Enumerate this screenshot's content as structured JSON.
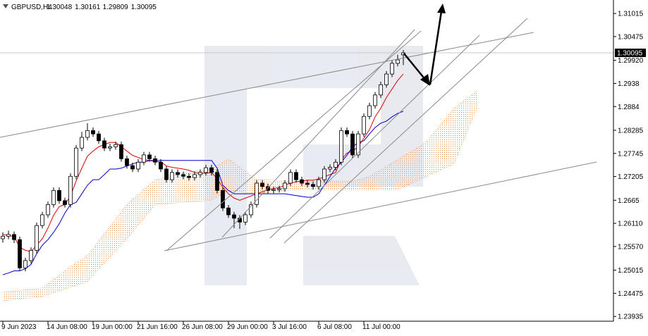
{
  "chart_data": {
    "type": "candlestick",
    "title": "GBPUSD,H4",
    "header_values": [
      1.30048,
      1.30161,
      1.29809,
      1.30095
    ],
    "categories": [
      "9 Jun 2023",
      null,
      null,
      null,
      null,
      null,
      null,
      null,
      "14 Jun 08:00",
      null,
      null,
      null,
      null,
      null,
      null,
      null,
      "19 Jun 00:00",
      null,
      null,
      null,
      null,
      null,
      null,
      null,
      "21 Jun 16:00",
      null,
      null,
      null,
      null,
      null,
      null,
      null,
      "26 Jun 08:00",
      null,
      null,
      null,
      null,
      null,
      null,
      null,
      "29 Jun 00:00",
      null,
      null,
      null,
      null,
      null,
      null,
      null,
      "3 Jul 16:00",
      null,
      null,
      null,
      null,
      null,
      null,
      null,
      "6 Jul 08:00",
      null,
      null,
      null,
      null,
      null,
      null,
      null,
      "11 Jul 00:00",
      null,
      null,
      null,
      null,
      null,
      null,
      null,
      null,
      null,
      null,
      null,
      null,
      null,
      null,
      null,
      null,
      null,
      null,
      null,
      null
    ],
    "open": [
      1.2575,
      1.2581,
      1.2585,
      1.2573,
      1.2507,
      1.2524,
      1.2548,
      1.2606,
      1.2631,
      1.2655,
      1.2688,
      1.2664,
      1.2655,
      1.2721,
      1.2787,
      1.2812,
      1.2828,
      1.282,
      1.2804,
      1.2787,
      1.279,
      1.2795,
      1.2762,
      1.2746,
      1.2738,
      1.2754,
      1.2771,
      1.2762,
      1.2754,
      1.2738,
      1.2713,
      1.273,
      1.2725,
      1.2721,
      1.2718,
      1.2725,
      1.273,
      1.2741,
      1.273,
      1.2688,
      1.2647,
      1.2631,
      1.2623,
      1.2614,
      1.2631,
      1.2655,
      1.2705,
      1.2697,
      1.2688,
      1.269,
      1.2692,
      1.2705,
      1.273,
      1.2713,
      1.2705,
      1.2702,
      1.2697,
      1.2713,
      1.2738,
      1.2742,
      1.2754,
      1.2828,
      1.282,
      1.2771,
      1.282,
      1.2861,
      1.2886,
      1.2911,
      1.2935,
      1.296,
      1.2985,
      1.30048,
      null,
      null,
      null,
      null,
      null,
      null,
      null,
      null,
      null,
      null,
      null,
      null,
      null
    ],
    "high": [
      1.259,
      1.2594,
      1.2592,
      1.258,
      1.2531,
      1.2555,
      1.2613,
      1.2638,
      1.2662,
      1.2695,
      1.2695,
      1.2671,
      1.2728,
      1.2794,
      1.2825,
      1.2845,
      1.2835,
      1.2827,
      1.2811,
      1.2797,
      1.2802,
      1.2802,
      1.2769,
      1.2753,
      1.2761,
      1.2778,
      1.2778,
      1.2769,
      1.2761,
      1.2745,
      1.2737,
      1.2737,
      1.2732,
      1.2728,
      1.2732,
      1.2737,
      1.2748,
      1.2748,
      1.2737,
      1.2695,
      1.2654,
      1.2638,
      1.263,
      1.2638,
      1.2662,
      1.2712,
      1.2712,
      1.2704,
      1.2697,
      1.2699,
      1.2712,
      1.2737,
      1.2737,
      1.272,
      1.2712,
      1.2709,
      1.272,
      1.2745,
      1.2749,
      1.2761,
      1.2835,
      1.2835,
      1.2827,
      1.2827,
      1.2868,
      1.2893,
      1.2918,
      1.2942,
      1.2967,
      1.2992,
      1.3005,
      1.30161,
      null,
      null,
      null,
      null,
      null,
      null,
      null,
      null,
      null,
      null,
      null,
      null,
      null
    ],
    "low": [
      1.2566,
      1.2574,
      1.2565,
      1.25,
      1.2499,
      1.2517,
      1.2541,
      1.2599,
      1.2624,
      1.2648,
      1.2657,
      1.2648,
      1.2648,
      1.2714,
      1.278,
      1.2805,
      1.2813,
      1.2797,
      1.278,
      1.278,
      1.2783,
      1.2755,
      1.2739,
      1.2731,
      1.2731,
      1.2747,
      1.2755,
      1.2747,
      1.2731,
      1.2706,
      1.2706,
      1.2718,
      1.2714,
      1.2711,
      1.2711,
      1.2718,
      1.2723,
      1.2723,
      1.2681,
      1.264,
      1.2624,
      1.26,
      1.2598,
      1.2607,
      1.2624,
      1.2648,
      1.269,
      1.2681,
      1.2681,
      1.2683,
      1.2685,
      1.2698,
      1.2706,
      1.2698,
      1.2695,
      1.269,
      1.269,
      1.2706,
      1.2731,
      1.2735,
      1.2747,
      1.2813,
      1.2764,
      1.2764,
      1.2813,
      1.2854,
      1.2879,
      1.2904,
      1.2928,
      1.2953,
      1.2978,
      1.29809,
      null,
      null,
      null,
      null,
      null,
      null,
      null,
      null,
      null,
      null,
      null,
      null,
      null
    ],
    "close": [
      1.2581,
      1.2585,
      1.2573,
      1.2507,
      1.2524,
      1.2548,
      1.2606,
      1.2631,
      1.2655,
      1.2688,
      1.2664,
      1.2655,
      1.2721,
      1.2787,
      1.2812,
      1.2828,
      1.282,
      1.2804,
      1.2787,
      1.279,
      1.2795,
      1.2762,
      1.2746,
      1.2738,
      1.2754,
      1.2771,
      1.2762,
      1.2754,
      1.2738,
      1.2713,
      1.273,
      1.2725,
      1.2721,
      1.2718,
      1.2725,
      1.273,
      1.2741,
      1.273,
      1.2688,
      1.2647,
      1.2631,
      1.2623,
      1.2614,
      1.2631,
      1.2655,
      1.2705,
      1.2697,
      1.2688,
      1.269,
      1.2692,
      1.2705,
      1.273,
      1.2713,
      1.2705,
      1.2702,
      1.2697,
      1.2713,
      1.2738,
      1.2742,
      1.2754,
      1.2828,
      1.282,
      1.2771,
      1.282,
      1.2861,
      1.2886,
      1.2911,
      1.2935,
      1.296,
      1.2985,
      1.2993,
      1.30095,
      null,
      null,
      null,
      null,
      null,
      null,
      null,
      null,
      null,
      null,
      null,
      null,
      null
    ],
    "up_color": "#ffffff",
    "down_color": "#000000",
    "wick_color": "#000000",
    "series": [
      {
        "color": "#e00000",
        "values": [
          1.2585,
          1.2583,
          1.258,
          1.2555,
          1.2548,
          1.2545,
          1.256,
          1.2575,
          1.26,
          1.263,
          1.265,
          1.2655,
          1.2675,
          1.271,
          1.274,
          1.2768,
          1.278,
          1.279,
          1.2795,
          1.28,
          1.28,
          1.279,
          1.278,
          1.277,
          1.2765,
          1.276,
          1.2758,
          1.2755,
          1.2755,
          1.2745,
          1.2742,
          1.274,
          1.2738,
          1.2735,
          1.273,
          1.2728,
          1.2728,
          1.273,
          1.2715,
          1.2695,
          1.268,
          1.267,
          1.2665,
          1.267,
          1.2675,
          1.268,
          1.2685,
          1.269,
          1.2692,
          1.2695,
          1.27,
          1.2705,
          1.2708,
          1.271,
          1.2712,
          1.2712,
          1.2715,
          1.272,
          1.2725,
          1.273,
          1.276,
          1.2775,
          1.278,
          1.279,
          1.281,
          1.283,
          1.286,
          1.288,
          1.2905,
          1.2925,
          1.2945,
          1.296,
          null,
          null,
          null,
          null,
          null,
          null,
          null,
          null,
          null,
          null,
          null,
          null,
          null
        ]
      },
      {
        "color": "#0000c8",
        "values": [
          1.2491,
          1.2495,
          1.25,
          1.25,
          1.2505,
          1.2515,
          1.254,
          1.256,
          1.2573,
          1.259,
          1.261,
          1.2635,
          1.2655,
          1.266,
          1.268,
          1.27,
          1.2713,
          1.2713,
          1.2725,
          1.2738,
          1.2738,
          1.274,
          1.2745,
          1.275,
          1.2754,
          1.2754,
          1.2758,
          1.2758,
          1.2758,
          1.2758,
          1.2758,
          1.2758,
          1.2758,
          1.2758,
          1.2758,
          1.2758,
          1.2758,
          1.2758,
          1.274,
          1.27,
          1.2688,
          1.268,
          1.268,
          1.268,
          1.268,
          1.268,
          1.268,
          1.268,
          1.268,
          1.268,
          1.268,
          1.2678,
          1.2676,
          1.2674,
          1.2672,
          1.2672,
          1.268,
          1.27,
          1.272,
          1.274,
          1.2754,
          1.277,
          1.279,
          1.28,
          1.2804,
          1.282,
          1.2835,
          1.2845,
          1.285,
          1.286,
          1.2868,
          1.2873,
          null,
          null,
          null,
          null,
          null,
          null,
          null,
          null,
          null,
          null,
          null,
          null,
          null
        ]
      }
    ],
    "cloud": {
      "color": "#f08a3c",
      "upper": [
        1.245,
        1.2451,
        1.2453,
        1.2454,
        1.2456,
        1.2457,
        1.2459,
        1.246,
        1.247,
        1.248,
        1.249,
        1.25,
        1.251,
        1.2518,
        1.2527,
        1.2535,
        1.2552,
        1.257,
        1.2587,
        1.2604,
        1.2621,
        1.2638,
        1.2655,
        1.2667,
        1.2678,
        1.269,
        1.2701,
        1.2713,
        1.2716,
        1.272,
        1.2723,
        1.2727,
        1.273,
        1.2732,
        1.2733,
        1.2735,
        1.2736,
        1.2738,
        1.2746,
        1.2754,
        1.2762,
        1.2752,
        1.2742,
        1.2733,
        1.2723,
        1.2713,
        1.2713,
        1.2712,
        1.2712,
        1.2711,
        1.2711,
        1.271,
        1.271,
        1.271,
        1.271,
        1.271,
        1.271,
        1.271,
        1.271,
        1.271,
        1.271,
        1.271,
        1.271,
        1.2713,
        1.2717,
        1.272,
        1.2728,
        1.2736,
        1.2744,
        1.2752,
        1.276,
        1.2768,
        1.2776,
        1.2784,
        1.2792,
        1.28,
        1.2816,
        1.2832,
        1.2848,
        1.2864,
        1.288,
        1.289,
        1.29,
        1.291,
        1.292
      ],
      "lower": [
        1.243,
        1.2431,
        1.2433,
        1.2434,
        1.2436,
        1.2437,
        1.2439,
        1.244,
        1.2444,
        1.2449,
        1.2453,
        1.2458,
        1.2462,
        1.2466,
        1.2471,
        1.2475,
        1.249,
        1.2504,
        1.2518,
        1.2533,
        1.2547,
        1.2561,
        1.2575,
        1.2591,
        1.2607,
        1.2623,
        1.2639,
        1.2655,
        1.2656,
        1.2657,
        1.2658,
        1.2659,
        1.266,
        1.2661,
        1.2662,
        1.2663,
        1.2664,
        1.2665,
        1.2673,
        1.268,
        1.2688,
        1.2686,
        1.2685,
        1.2683,
        1.2682,
        1.268,
        1.2681,
        1.2683,
        1.2684,
        1.2686,
        1.2687,
        1.2689,
        1.269,
        1.269,
        1.269,
        1.269,
        1.269,
        1.269,
        1.269,
        1.269,
        1.269,
        1.269,
        1.269,
        1.269,
        1.269,
        1.269,
        1.269,
        1.269,
        1.269,
        1.269,
        1.269,
        1.2696,
        1.2702,
        1.2708,
        1.2714,
        1.272,
        1.2726,
        1.2732,
        1.2738,
        1.2744,
        1.275,
        1.2783,
        1.2815,
        1.2848,
        1.288
      ]
    },
    "last_price": 1.30095,
    "ylim": [
      1.2384,
      1.3133
    ],
    "yticks": [
      1.31015,
      1.30475,
      {
        "value": 1.2992,
        "label": "1.29920"
      },
      1.2938,
      1.2884,
      1.28285,
      1.27745,
      1.27205,
      1.2665,
      {
        "value": 1.2611,
        "label": "1.26110"
      },
      {
        "value": 1.2557,
        "label": "1.25570"
      },
      1.25015,
      1.24475,
      1.23935
    ]
  }
}
